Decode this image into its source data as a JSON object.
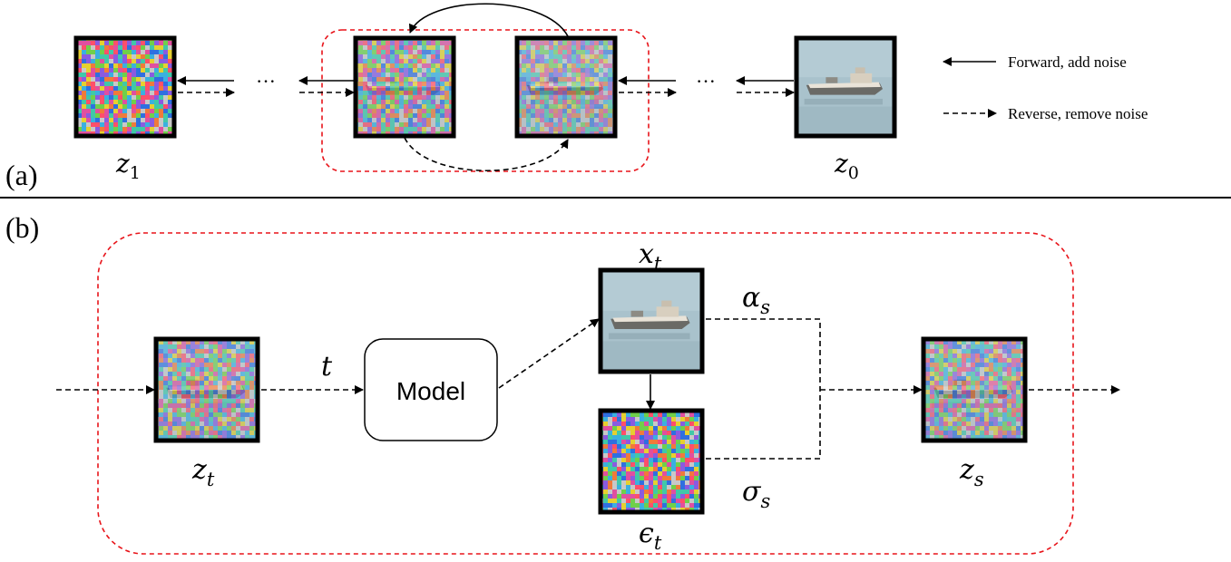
{
  "panel_a": {
    "label": "(a)",
    "ellipsis": "···",
    "z1_var": "z",
    "z1_sub": "1",
    "z0_var": "z",
    "z0_sub": "0",
    "legend": {
      "forward": "Forward, add noise",
      "reverse": "Reverse, remove noise"
    }
  },
  "panel_b": {
    "label": "(b)",
    "zt_var": "z",
    "zt_sub": "t",
    "zs_var": "z",
    "zs_sub": "s",
    "xt_var": "x",
    "xt_sub": "t",
    "eps_var": "ϵ",
    "eps_sub": "t",
    "alpha_var": "α",
    "alpha_sub": "s",
    "sigma_var": "σ",
    "sigma_sub": "s",
    "t_label": "t",
    "model_label": "Model"
  },
  "colors": {
    "dashed_box": "#e8141a",
    "frame": "#000000",
    "noise": [
      "#e6d02f",
      "#3ab0e0",
      "#e04fa0",
      "#6fd04a",
      "#8a5be0",
      "#f07a3a",
      "#40c8a8",
      "#c8c8c8",
      "#ff4f6a",
      "#2f6fe0"
    ],
    "water": "#a9c2cc",
    "ship_hull": "#e9e3d8"
  }
}
